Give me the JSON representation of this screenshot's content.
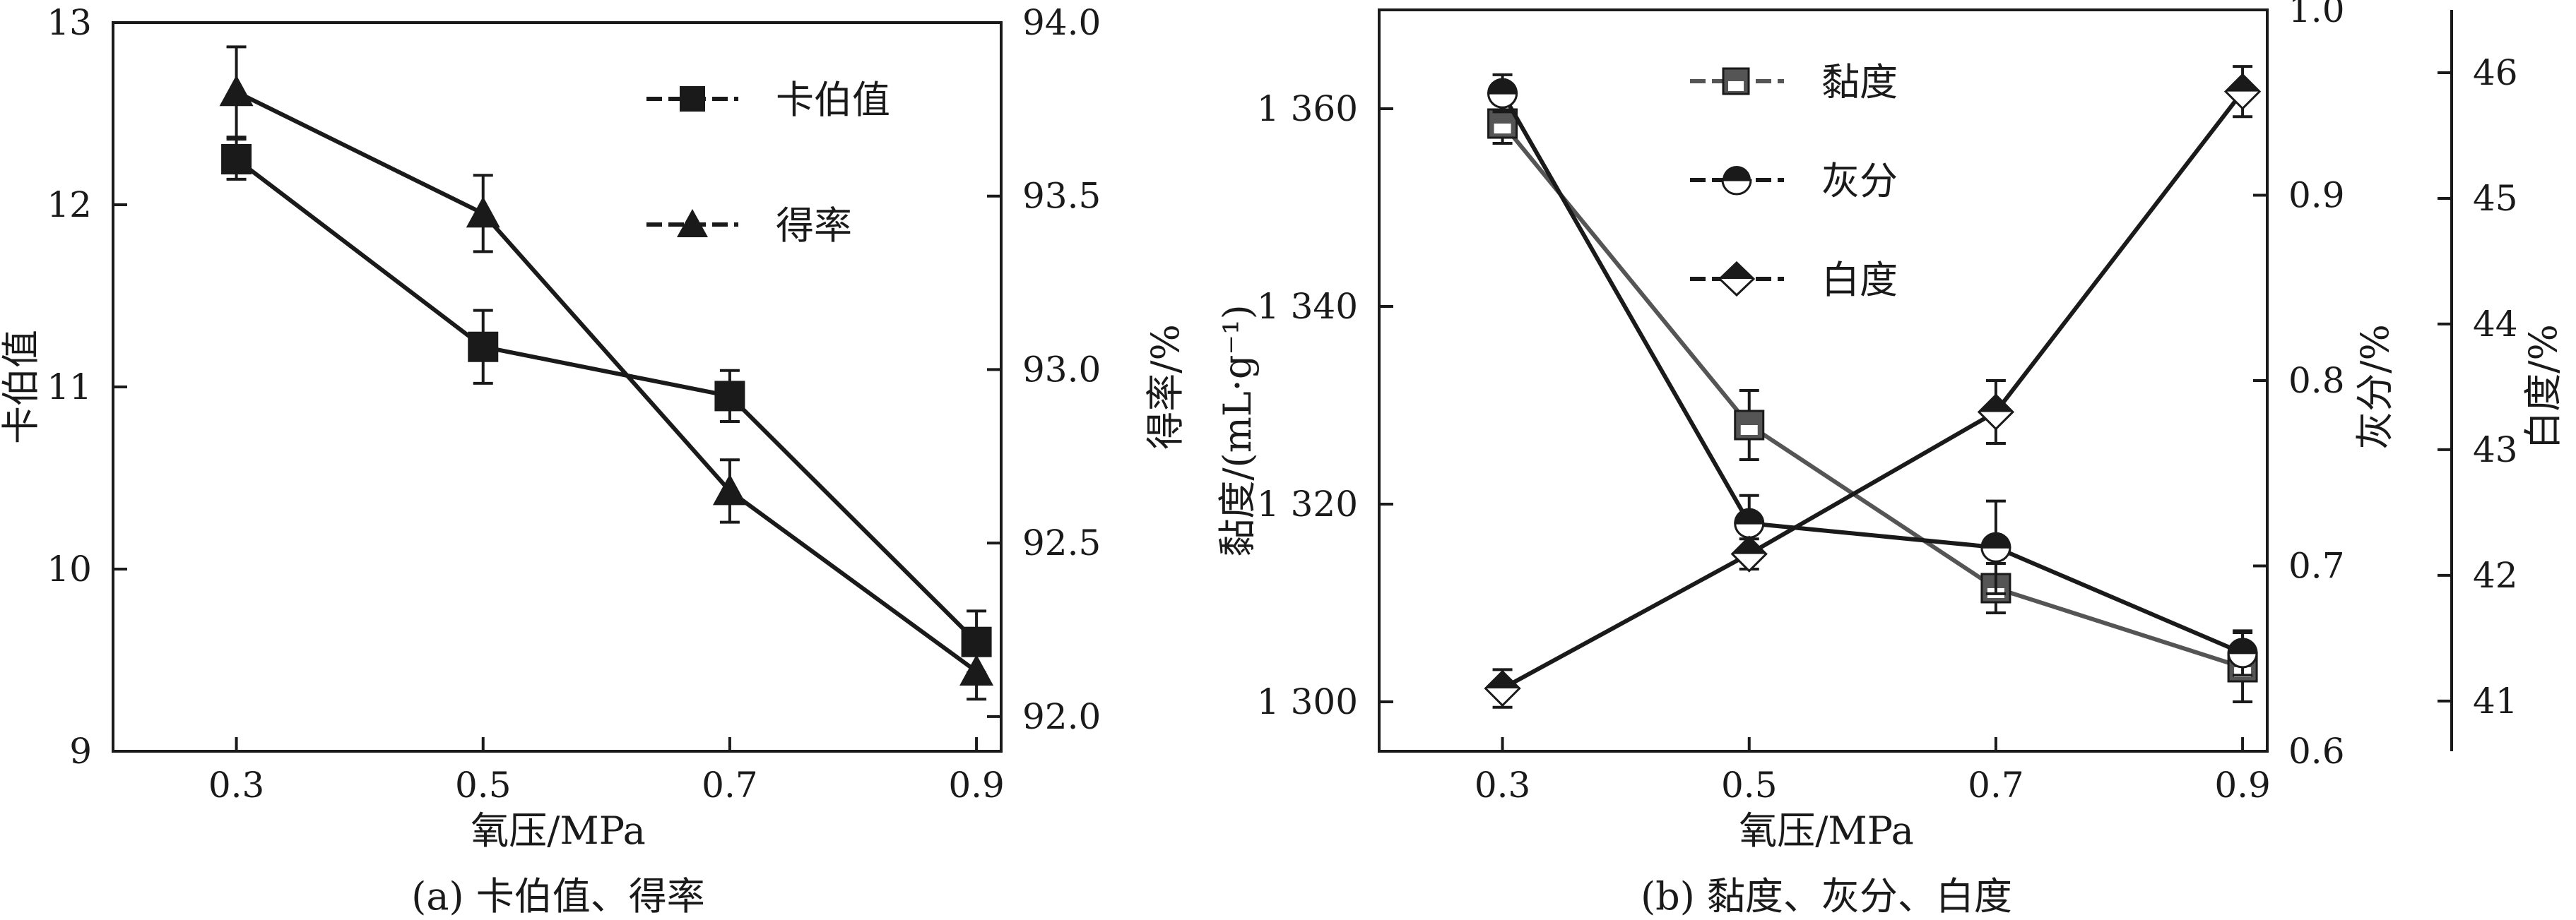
{
  "chart_data": [
    {
      "type": "line",
      "caption": "(a) 卡伯值、得率",
      "xlabel": "氧压/MPa",
      "x": [
        0.3,
        0.5,
        0.7,
        0.9
      ],
      "x_tick_labels": [
        "0.3",
        "0.5",
        "0.7",
        "0.9"
      ],
      "xlim": [
        0.2,
        0.92
      ],
      "y_left": {
        "label": "卡伯值",
        "lim": [
          9,
          13
        ],
        "ticks": [
          "9",
          "10",
          "11",
          "12",
          "13"
        ]
      },
      "y_right": {
        "label": "得率/%",
        "lim": [
          91.9,
          94.0
        ],
        "ticks": [
          "92.0",
          "92.5",
          "93.0",
          "93.5",
          "94.0"
        ]
      },
      "series": [
        {
          "name": "卡伯值",
          "marker": "square",
          "axis": "left",
          "values": [
            12.25,
            11.22,
            10.95,
            9.6
          ],
          "err": [
            0.11,
            0.2,
            0.14,
            0.17
          ],
          "color": "#1a1a1a"
        },
        {
          "name": "得率",
          "marker": "triangle",
          "axis": "right",
          "values": [
            93.8,
            93.45,
            92.65,
            92.13
          ],
          "err": [
            0.13,
            0.11,
            0.09,
            0.08
          ],
          "color": "#1a1a1a"
        }
      ],
      "legend_position": "top-right",
      "grid": false
    },
    {
      "type": "line",
      "caption": "(b) 黏度、灰分、白度",
      "xlabel": "氧压/MPa",
      "x": [
        0.3,
        0.5,
        0.7,
        0.9
      ],
      "x_tick_labels": [
        "0.3",
        "0.5",
        "0.7",
        "0.9"
      ],
      "xlim": [
        0.2,
        0.92
      ],
      "y_left": {
        "label": "黏度/(mL·g⁻¹)",
        "lim": [
          1295,
          1370
        ],
        "ticks": [
          "1 300",
          "1 320",
          "1 340",
          "1 360"
        ]
      },
      "y_right": {
        "label": "灰分/%",
        "lim": [
          0.6,
          1.0
        ],
        "ticks": [
          "0.6",
          "0.7",
          "0.8",
          "0.9",
          "1.0"
        ]
      },
      "y_right2": {
        "label": "白度/%",
        "lim": [
          40.6,
          46.5
        ],
        "ticks": [
          "41",
          "42",
          "43",
          "44",
          "45",
          "46"
        ]
      },
      "series": [
        {
          "name": "黏度",
          "marker": "square",
          "axis": "left",
          "values": [
            1358.5,
            1328,
            1311.5,
            1303.5
          ],
          "err": [
            2,
            3.5,
            2.5,
            3.5
          ],
          "color": "#555555"
        },
        {
          "name": "灰分",
          "marker": "circle",
          "axis": "right",
          "values": [
            0.955,
            0.723,
            0.71,
            0.653
          ],
          "err": [
            0.01,
            0.015,
            0.025,
            0.012
          ],
          "color": "#1a1a1a"
        },
        {
          "name": "白度",
          "marker": "diamond",
          "axis": "right2",
          "values": [
            41.1,
            42.17,
            43.3,
            45.85
          ],
          "err": [
            0.15,
            0.12,
            0.25,
            0.2
          ],
          "color": "#1a1a1a"
        }
      ],
      "legend_position": "top-left",
      "grid": false
    }
  ]
}
